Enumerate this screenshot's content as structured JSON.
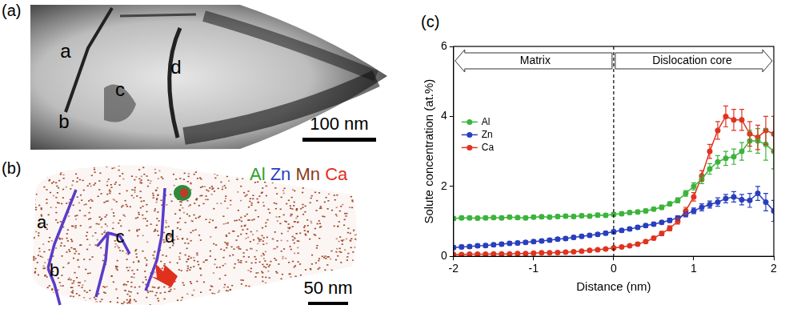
{
  "panels": [
    {
      "label": "(a)",
      "markers": [
        "a",
        "b",
        "c",
        "d"
      ],
      "scale_bar": "100 nm"
    },
    {
      "label": "(b)",
      "markers": [
        "a",
        "b",
        "c",
        "d"
      ],
      "elements": [
        {
          "name": "Al",
          "color": "#2ca02c"
        },
        {
          "name": "Zn",
          "color": "#2a3fbf"
        },
        {
          "name": "Mn",
          "color": "#8b3a1a"
        },
        {
          "name": "Ca",
          "color": "#e0301e"
        }
      ],
      "scale_bar": "50 nm"
    }
  ],
  "chart_data": {
    "panel_label": "(c)",
    "type": "line",
    "x_label": "Distance (nm)",
    "y_label": "Solute concentration (at.%)",
    "x": [
      -2.0,
      -1.9,
      -1.8,
      -1.7,
      -1.6,
      -1.5,
      -1.4,
      -1.3,
      -1.2,
      -1.1,
      -1.0,
      -0.9,
      -0.8,
      -0.7,
      -0.6,
      -0.5,
      -0.4,
      -0.3,
      -0.2,
      -0.1,
      0.0,
      0.1,
      0.2,
      0.3,
      0.4,
      0.5,
      0.6,
      0.7,
      0.8,
      0.9,
      1.0,
      1.1,
      1.2,
      1.3,
      1.4,
      1.5,
      1.6,
      1.7,
      1.8,
      1.9,
      2.0
    ],
    "series": [
      {
        "name": "Al",
        "color": "#3cb43c",
        "values": [
          1.08,
          1.1,
          1.1,
          1.09,
          1.1,
          1.11,
          1.1,
          1.12,
          1.11,
          1.1,
          1.12,
          1.13,
          1.12,
          1.14,
          1.15,
          1.14,
          1.16,
          1.15,
          1.18,
          1.17,
          1.2,
          1.22,
          1.25,
          1.27,
          1.3,
          1.35,
          1.4,
          1.5,
          1.6,
          1.8,
          2.0,
          2.2,
          2.5,
          2.7,
          2.8,
          2.85,
          3.0,
          3.3,
          3.3,
          3.2,
          3.0
        ],
        "errors": [
          0.05,
          0.05,
          0.05,
          0.05,
          0.05,
          0.05,
          0.05,
          0.05,
          0.05,
          0.05,
          0.05,
          0.05,
          0.05,
          0.05,
          0.05,
          0.05,
          0.05,
          0.05,
          0.05,
          0.05,
          0.05,
          0.05,
          0.05,
          0.05,
          0.05,
          0.05,
          0.06,
          0.06,
          0.07,
          0.08,
          0.1,
          0.12,
          0.15,
          0.18,
          0.2,
          0.22,
          0.25,
          0.3,
          0.35,
          0.45,
          0.5
        ]
      },
      {
        "name": "Zn",
        "color": "#2a3fbf",
        "values": [
          0.25,
          0.27,
          0.28,
          0.3,
          0.31,
          0.33,
          0.35,
          0.37,
          0.38,
          0.4,
          0.42,
          0.44,
          0.46,
          0.49,
          0.51,
          0.54,
          0.57,
          0.6,
          0.63,
          0.66,
          0.7,
          0.74,
          0.78,
          0.83,
          0.88,
          0.92,
          0.97,
          1.03,
          1.1,
          1.2,
          1.3,
          1.4,
          1.48,
          1.55,
          1.65,
          1.7,
          1.62,
          1.6,
          1.8,
          1.55,
          1.3
        ],
        "errors": [
          0.05,
          0.05,
          0.05,
          0.05,
          0.05,
          0.05,
          0.05,
          0.05,
          0.05,
          0.05,
          0.05,
          0.05,
          0.05,
          0.05,
          0.05,
          0.05,
          0.05,
          0.05,
          0.05,
          0.05,
          0.05,
          0.05,
          0.05,
          0.05,
          0.05,
          0.05,
          0.05,
          0.06,
          0.06,
          0.07,
          0.08,
          0.1,
          0.1,
          0.12,
          0.12,
          0.15,
          0.15,
          0.2,
          0.2,
          0.25,
          0.3
        ]
      },
      {
        "name": "Ca",
        "color": "#e0341f",
        "values": [
          0.05,
          0.05,
          0.06,
          0.06,
          0.06,
          0.07,
          0.07,
          0.07,
          0.08,
          0.08,
          0.09,
          0.1,
          0.1,
          0.11,
          0.12,
          0.13,
          0.15,
          0.17,
          0.19,
          0.21,
          0.24,
          0.27,
          0.3,
          0.35,
          0.42,
          0.52,
          0.65,
          0.8,
          1.0,
          1.3,
          1.7,
          2.3,
          3.0,
          3.6,
          4.0,
          3.9,
          3.9,
          3.5,
          3.4,
          3.6,
          3.5
        ],
        "errors": [
          0.03,
          0.03,
          0.03,
          0.03,
          0.03,
          0.03,
          0.03,
          0.03,
          0.03,
          0.03,
          0.03,
          0.03,
          0.03,
          0.03,
          0.03,
          0.03,
          0.03,
          0.03,
          0.03,
          0.03,
          0.03,
          0.03,
          0.03,
          0.04,
          0.04,
          0.05,
          0.06,
          0.07,
          0.08,
          0.1,
          0.12,
          0.15,
          0.2,
          0.25,
          0.3,
          0.3,
          0.3,
          0.35,
          0.35,
          0.4,
          0.5
        ]
      }
    ],
    "xlim": [
      -2,
      2
    ],
    "xticks": [
      -2,
      -1,
      0,
      1,
      2
    ],
    "ylim": [
      0,
      6
    ],
    "yticks": [
      0,
      2,
      4,
      6
    ],
    "grid": false,
    "legend": "upper left",
    "marker": "circle",
    "vline": 0,
    "annotations": [
      "Matrix",
      "Dislocation core"
    ]
  }
}
